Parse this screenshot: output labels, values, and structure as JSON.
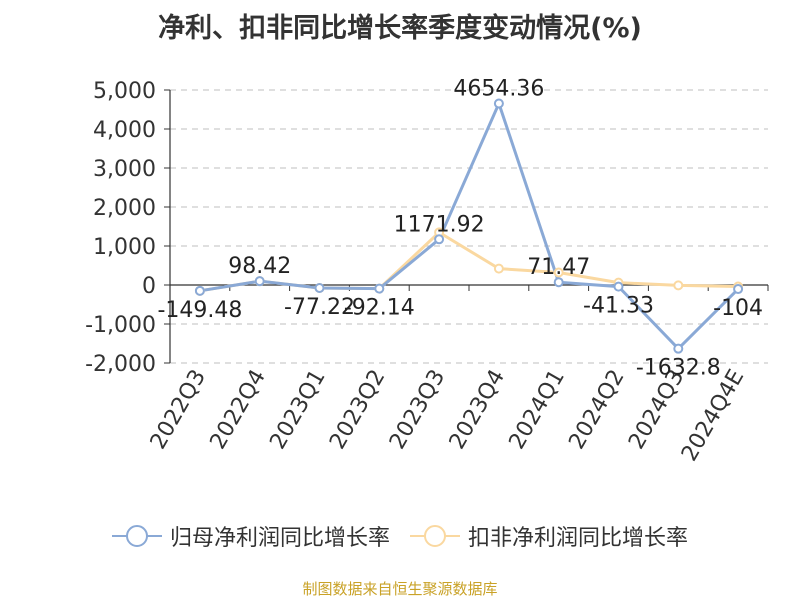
{
  "chart_data": {
    "type": "line",
    "title": "净利、扣非同比增长率季度变动情况(%)",
    "categories": [
      "2022Q3",
      "2022Q4",
      "2023Q1",
      "2023Q2",
      "2023Q3",
      "2023Q4",
      "2024Q1",
      "2024Q2",
      "2024Q3",
      "2024Q4E"
    ],
    "y_ticks": [
      "5,000",
      "4,000",
      "3,000",
      "2,000",
      "1,000",
      "0",
      "-1,000",
      "-2,000"
    ],
    "y_tick_values": [
      5000,
      4000,
      3000,
      2000,
      1000,
      0,
      -1000,
      -2000
    ],
    "ylim": [
      -2000,
      5000
    ],
    "grid": true,
    "legend_position": "bottom",
    "series": [
      {
        "name": "归母净利润同比增长率",
        "color": "#8aa9d6",
        "values": [
          -149.48,
          98.42,
          -77.22,
          -92.14,
          1171.92,
          4654.36,
          71.47,
          -41.33,
          -1632.8,
          -104
        ],
        "labels": [
          "-149.48",
          "98.42",
          "-77.22",
          "-92.14",
          "1171.92",
          "4654.36",
          "71.47",
          "-41.33",
          "-1632.8",
          "-104"
        ]
      },
      {
        "name": "扣非净利润同比增长率",
        "color": "#fad8a0",
        "values": [
          -149.48,
          98.42,
          -77.22,
          -92.14,
          1350,
          420,
          320,
          60,
          -10,
          -40
        ]
      }
    ]
  },
  "source": "制图数据来自恒生聚源数据库"
}
